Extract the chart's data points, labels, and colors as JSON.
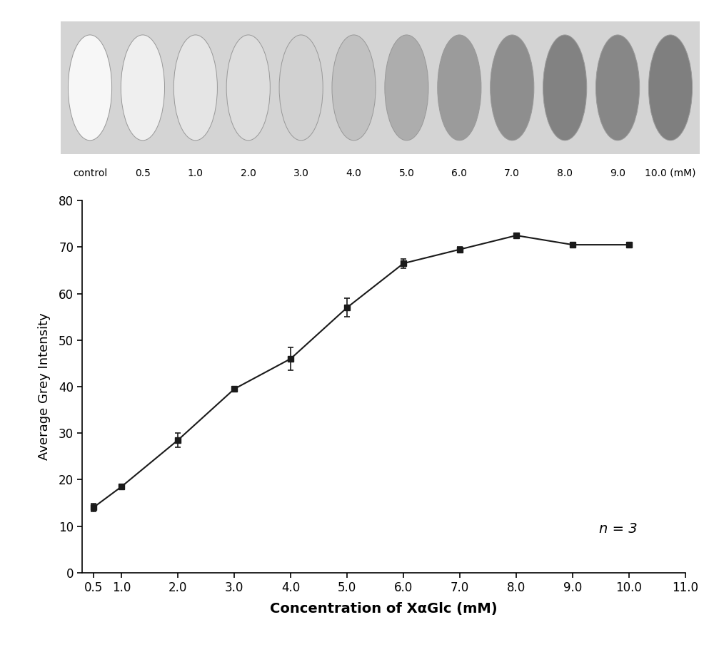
{
  "x": [
    0.5,
    1.0,
    2.0,
    3.0,
    4.0,
    5.0,
    6.0,
    7.0,
    8.0,
    9.0,
    10.0
  ],
  "y": [
    14.0,
    18.5,
    28.5,
    39.5,
    46.0,
    57.0,
    66.5,
    69.5,
    72.5,
    70.5,
    70.5
  ],
  "yerr": [
    0.8,
    0.3,
    1.5,
    0.5,
    2.5,
    2.0,
    1.0,
    0.5,
    0.5,
    0.5,
    0.5
  ],
  "xlabel": "Concentration of XαGlc (mM)",
  "ylabel": "Average Grey Intensity",
  "xlim": [
    0.3,
    11.0
  ],
  "ylim": [
    0,
    80
  ],
  "xticks": [
    0.5,
    1.0,
    2.0,
    3.0,
    4.0,
    5.0,
    6.0,
    7.0,
    8.0,
    9.0,
    10.0,
    11.0
  ],
  "yticks": [
    0,
    10,
    20,
    30,
    40,
    50,
    60,
    70,
    80
  ],
  "annotation": "n = 3",
  "line_color": "#1a1a1a",
  "marker": "s",
  "markersize": 6,
  "linewidth": 1.5,
  "bg_color": "#ffffff",
  "dot_labels": [
    "control",
    "0.5",
    "1.0",
    "2.0",
    "3.0",
    "4.0",
    "5.0",
    "6.0",
    "7.0",
    "8.0",
    "9.0",
    "10.0 (mM)"
  ],
  "dot_grays": [
    0.97,
    0.94,
    0.9,
    0.87,
    0.82,
    0.76,
    0.68,
    0.61,
    0.56,
    0.51,
    0.53,
    0.5
  ],
  "dot_panel_bg": "#d4d4d4",
  "dot_edge_color": "#999999"
}
